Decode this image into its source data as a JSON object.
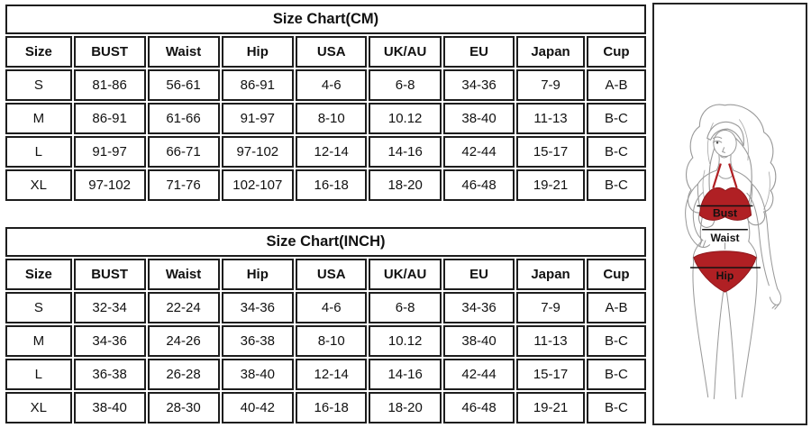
{
  "chart_data": [
    {
      "type": "table",
      "title": "Size Chart(CM)",
      "columns": [
        "Size",
        "BUST",
        "Waist",
        "Hip",
        "USA",
        "UK/AU",
        "EU",
        "Japan",
        "Cup"
      ],
      "rows": [
        [
          "S",
          "81-86",
          "56-61",
          "86-91",
          "4-6",
          "6-8",
          "34-36",
          "7-9",
          "A-B"
        ],
        [
          "M",
          "86-91",
          "61-66",
          "91-97",
          "8-10",
          "10.12",
          "38-40",
          "11-13",
          "B-C"
        ],
        [
          "L",
          "91-97",
          "66-71",
          "97-102",
          "12-14",
          "14-16",
          "42-44",
          "15-17",
          "B-C"
        ],
        [
          "XL",
          "97-102",
          "71-76",
          "102-107",
          "16-18",
          "18-20",
          "46-48",
          "19-21",
          "B-C"
        ]
      ]
    },
    {
      "type": "table",
      "title": "Size Chart(INCH)",
      "columns": [
        "Size",
        "BUST",
        "Waist",
        "Hip",
        "USA",
        "UK/AU",
        "EU",
        "Japan",
        "Cup"
      ],
      "rows": [
        [
          "S",
          "32-34",
          "22-24",
          "34-36",
          "4-6",
          "6-8",
          "34-36",
          "7-9",
          "A-B"
        ],
        [
          "M",
          "34-36",
          "24-26",
          "36-38",
          "8-10",
          "10.12",
          "38-40",
          "11-13",
          "B-C"
        ],
        [
          "L",
          "36-38",
          "26-28",
          "38-40",
          "12-14",
          "14-16",
          "42-44",
          "15-17",
          "B-C"
        ],
        [
          "XL",
          "38-40",
          "28-30",
          "40-42",
          "16-18",
          "18-20",
          "46-48",
          "19-21",
          "B-C"
        ]
      ]
    }
  ],
  "figure": {
    "labels": {
      "bust": "Bust",
      "waist": "Waist",
      "hip": "Hip"
    },
    "bikini_color": "#b02024",
    "bikini_edge_color": "#8e171b",
    "outline_color": "#9a9a9a"
  },
  "colors": {
    "table_border": "#1d1d1d",
    "text": "#111111",
    "background": "#ffffff"
  }
}
